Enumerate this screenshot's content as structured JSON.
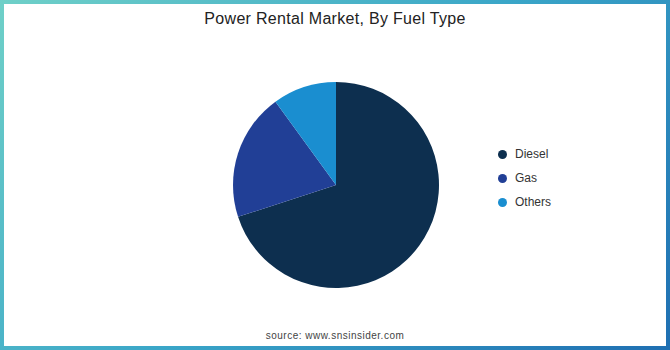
{
  "chart_data": {
    "type": "pie",
    "title": "Power Rental Market, By Fuel Type",
    "categories": [
      "Diesel",
      "Gas",
      "Others"
    ],
    "values": [
      70,
      20,
      10
    ],
    "colors": [
      "#0d2f4f",
      "#213f96",
      "#1a8ed0"
    ],
    "legend": "right",
    "source": "source: www.snsinsider.com"
  }
}
